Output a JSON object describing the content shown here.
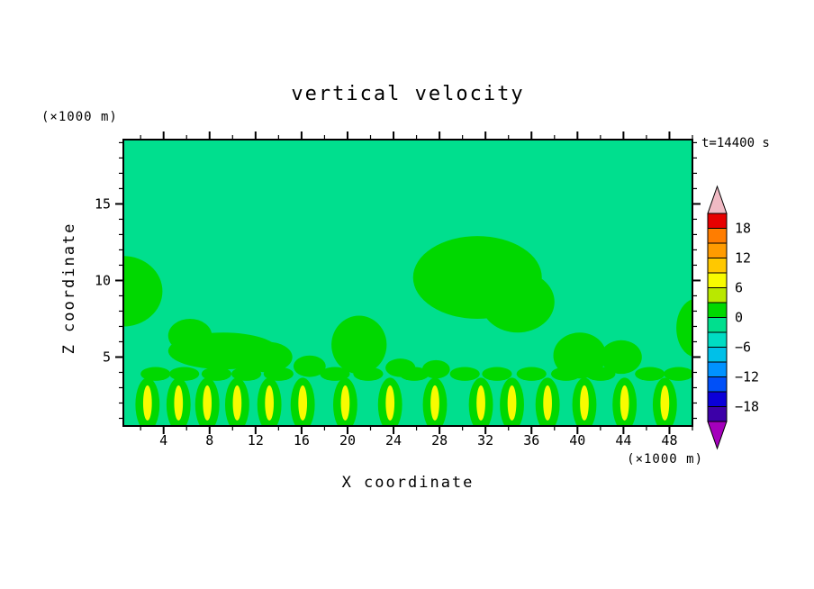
{
  "figure": {
    "title": "vertical velocity",
    "time_label": "t=14400 s",
    "y_unit_label": "(×1000 m)",
    "x_unit_label": "(×1000 m)",
    "x_axis_label": "X coordinate",
    "y_axis_label": "Z coordinate"
  },
  "colors": {
    "background_field": "#00df8e",
    "frame": "#000000",
    "page_background": "#ffffff"
  },
  "chart_data": {
    "type": "heatmap",
    "subtype": "filled-contour",
    "title": "vertical velocity",
    "xlabel": "X coordinate",
    "ylabel": "Z coordinate",
    "x_units": "×1000 m",
    "y_units": "×1000 m",
    "time": "t=14400 s",
    "xlim": [
      0.5,
      50
    ],
    "ylim": [
      0.5,
      19.2
    ],
    "x_ticks": [
      4,
      8,
      12,
      16,
      20,
      24,
      28,
      32,
      36,
      40,
      44,
      48
    ],
    "y_ticks": [
      5,
      10,
      15
    ],
    "x_minor_step": 2,
    "x_major_step": 4,
    "y_minor_step": 1,
    "y_major_step": 5,
    "grid": false,
    "background_value_band": "-3 to 0",
    "palette": {
      "background": "#00df8e",
      "updraft_weak": "#00d800",
      "updraft_strong": "#f8fb00"
    },
    "colorbar": {
      "position": "right",
      "tick_labels": [
        "18",
        "12",
        "6",
        "0",
        "−6",
        "−12",
        "−18"
      ],
      "level_step": 3,
      "value_range": [
        -21,
        21
      ],
      "segment_colors_top_to_bottom": [
        "#e60000",
        "#ff7d00",
        "#ff9b00",
        "#ffc800",
        "#f8fb00",
        "#b9e800",
        "#00d800",
        "#00df8e",
        "#00dcc3",
        "#00c0e8",
        "#0092ff",
        "#0050f8",
        "#0b00d8",
        "#3c00a8"
      ],
      "over_color": "#f0bac4",
      "under_color": "#a400bc"
    },
    "features": {
      "blobs_level_0_to_3": [
        [
          0.5,
          9.3,
          3.4,
          2.3
        ],
        [
          9.2,
          5.4,
          4.8,
          1.2
        ],
        [
          6.3,
          6.4,
          1.9,
          1.1
        ],
        [
          13.0,
          5.0,
          2.2,
          1.0
        ],
        [
          21.0,
          5.8,
          2.4,
          1.9
        ],
        [
          31.3,
          10.2,
          5.6,
          2.7
        ],
        [
          34.8,
          8.6,
          3.2,
          2.0
        ],
        [
          40.2,
          5.1,
          2.3,
          1.5
        ],
        [
          43.8,
          5.0,
          1.8,
          1.1
        ],
        [
          50.3,
          6.9,
          1.7,
          1.9
        ],
        [
          16.7,
          4.4,
          1.4,
          0.7
        ],
        [
          24.6,
          4.3,
          1.3,
          0.6
        ],
        [
          27.7,
          4.2,
          1.2,
          0.6
        ]
      ],
      "band_level_0_to_3": {
        "z": 3.9,
        "rx": 1.3,
        "rz": 0.45,
        "x_positions": [
          3.3,
          5.8,
          8.6,
          11.2,
          14.0,
          18.9,
          21.8,
          25.8,
          30.2,
          33.0,
          36.0,
          39.0,
          42.0,
          46.3,
          48.8
        ]
      },
      "cell_row": {
        "x_positions": [
          2.6,
          5.3,
          7.8,
          10.4,
          13.2,
          16.1,
          19.8,
          23.7,
          27.6,
          31.6,
          34.3,
          37.4,
          40.6,
          44.1,
          47.6
        ],
        "green": {
          "z": 1.9,
          "rx": 1.05,
          "rz": 1.75
        },
        "yellow": {
          "z": 2.0,
          "rx": 0.38,
          "rz": 1.15
        }
      }
    }
  }
}
